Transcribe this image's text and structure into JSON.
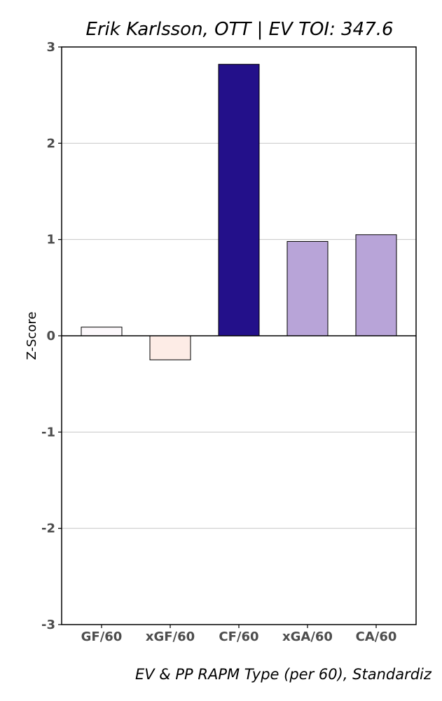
{
  "chart_data": {
    "type": "bar",
    "title": "Erik Karlsson, OTT  |  EV TOI: 347.6",
    "xlabel": "EV & PP RAPM Type (per 60), Standardiz",
    "ylabel": "Z-Score",
    "categories": [
      "GF/60",
      "xGF/60",
      "CF/60",
      "xGA/60",
      "CA/60"
    ],
    "values": [
      0.09,
      -0.25,
      2.82,
      0.98,
      1.05
    ],
    "bar_colors": [
      "#fcf8fb",
      "#fdece6",
      "#23108a",
      "#b8a4d8",
      "#b8a4d8"
    ],
    "ylim": [
      -3,
      3
    ],
    "yticks": [
      3,
      2,
      1,
      0,
      -1,
      -2,
      -3
    ],
    "grid": true
  }
}
